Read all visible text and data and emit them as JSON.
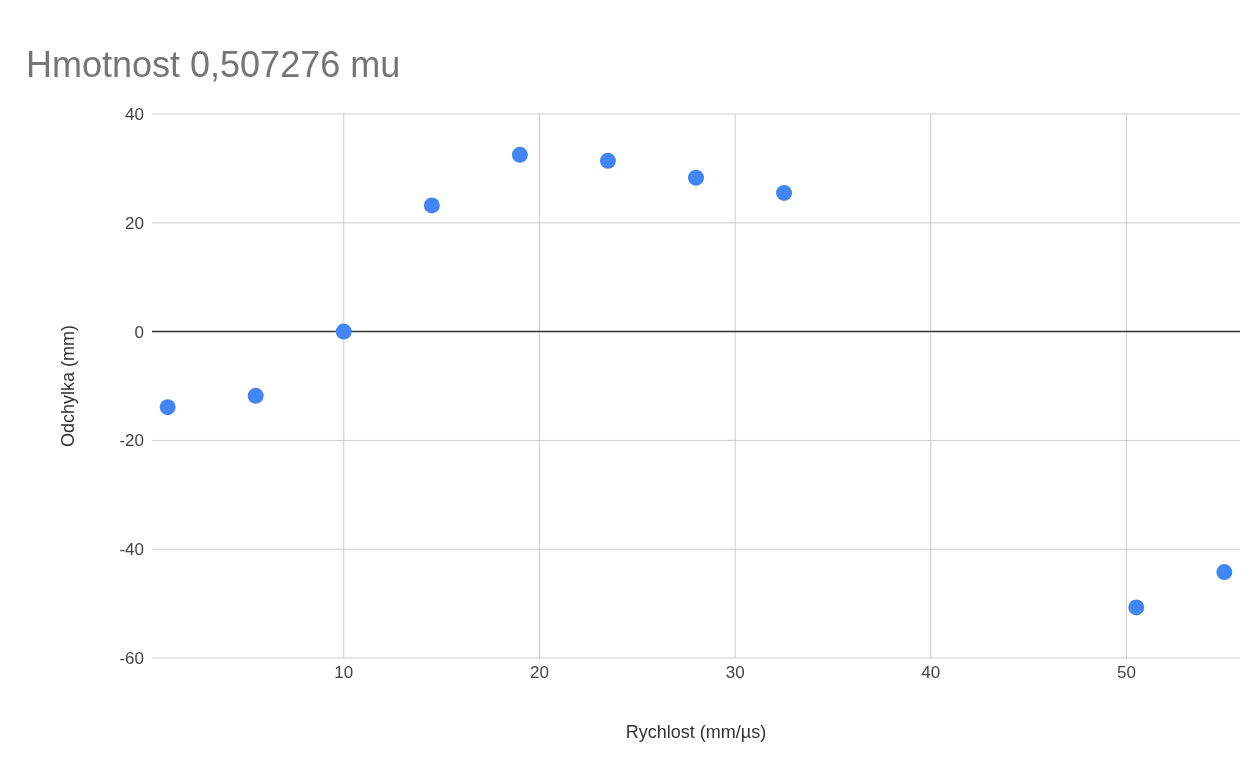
{
  "chart_data": {
    "type": "scatter",
    "title": "Hmotnost 0,507276 mu",
    "xlabel": "Rychlost (mm/µs)",
    "ylabel": "Odchylka (mm)",
    "x": [
      1,
      5.5,
      10,
      14.5,
      19,
      23.5,
      28,
      32.5,
      50.5,
      55
    ],
    "series": [
      {
        "color": "#4285f4",
        "values": [
          -13.9,
          -11.8,
          0,
          23.2,
          32.5,
          31.4,
          28.3,
          25.5,
          -50.7,
          -44.2
        ]
      }
    ],
    "xlim": [
      0.2,
      55.8
    ],
    "xticks": [
      10,
      20,
      30,
      40,
      50
    ],
    "ylim": [
      -60,
      40
    ],
    "yticks": [
      -60,
      -40,
      -20,
      0,
      20,
      40
    ],
    "ref_lines": [
      {
        "axis": "y",
        "value": 0,
        "color": "#333333"
      }
    ],
    "grid": true,
    "marker": "circle",
    "legend": false
  }
}
